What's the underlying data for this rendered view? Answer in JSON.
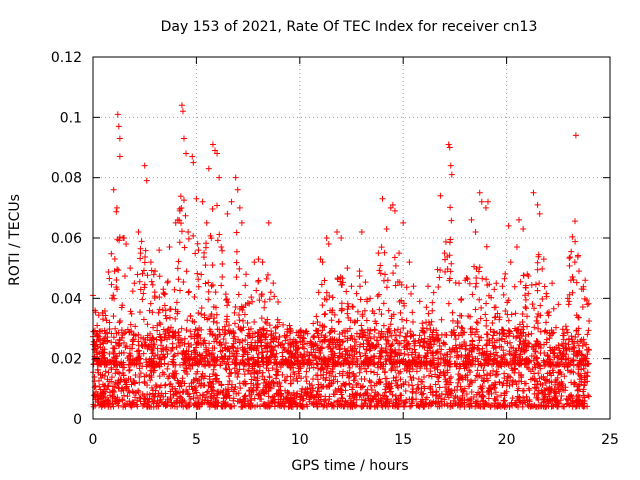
{
  "chart_data": {
    "type": "scatter",
    "title": "Day 153 of 2021, Rate Of TEC Index for receiver cn13",
    "xlabel": "GPS time / hours",
    "ylabel": "ROTI / TECUs",
    "xlim": [
      0,
      25
    ],
    "ylim": [
      0,
      0.12
    ],
    "x_ticks": [
      0,
      5,
      10,
      15,
      20,
      25
    ],
    "x_tick_labels": [
      "0",
      "5",
      "10",
      "15",
      "20",
      "25"
    ],
    "y_ticks": [
      0,
      0.02,
      0.04,
      0.06,
      0.08,
      0.1,
      0.12
    ],
    "y_tick_labels": [
      "0",
      "0.02",
      "0.04",
      "0.06",
      "0.08",
      "0.1",
      "0.12"
    ],
    "grid": true,
    "marker": "+",
    "marker_color": "#ff0000",
    "series": [
      {
        "name": "ROTI",
        "points": [
          [
            0.0,
            0.041
          ],
          [
            0.1,
            0.036
          ],
          [
            0.2,
            0.031
          ],
          [
            0.3,
            0.029
          ],
          [
            0.5,
            0.025
          ],
          [
            0.8,
            0.032
          ],
          [
            1.0,
            0.076
          ],
          [
            1.2,
            0.101
          ],
          [
            1.25,
            0.097
          ],
          [
            1.3,
            0.093
          ],
          [
            1.3,
            0.087
          ],
          [
            1.5,
            0.06
          ],
          [
            1.6,
            0.058
          ],
          [
            1.8,
            0.05
          ],
          [
            2.0,
            0.045
          ],
          [
            2.2,
            0.062
          ],
          [
            2.3,
            0.055
          ],
          [
            2.5,
            0.084
          ],
          [
            2.6,
            0.079
          ],
          [
            2.8,
            0.052
          ],
          [
            3.0,
            0.049
          ],
          [
            3.2,
            0.056
          ],
          [
            3.4,
            0.043
          ],
          [
            3.7,
            0.057
          ],
          [
            4.0,
            0.065
          ],
          [
            4.1,
            0.066
          ],
          [
            4.2,
            0.069
          ],
          [
            4.3,
            0.104
          ],
          [
            4.35,
            0.102
          ],
          [
            4.4,
            0.093
          ],
          [
            4.5,
            0.088
          ],
          [
            4.6,
            0.062
          ],
          [
            4.8,
            0.087
          ],
          [
            4.85,
            0.085
          ],
          [
            5.0,
            0.073
          ],
          [
            5.1,
            0.056
          ],
          [
            5.3,
            0.072
          ],
          [
            5.5,
            0.065
          ],
          [
            5.6,
            0.083
          ],
          [
            5.8,
            0.091
          ],
          [
            5.9,
            0.089
          ],
          [
            6.0,
            0.088
          ],
          [
            6.1,
            0.08
          ],
          [
            6.2,
            0.057
          ],
          [
            6.5,
            0.068
          ],
          [
            6.7,
            0.072
          ],
          [
            6.9,
            0.08
          ],
          [
            7.0,
            0.076
          ],
          [
            7.1,
            0.07
          ],
          [
            7.2,
            0.065
          ],
          [
            7.4,
            0.048
          ],
          [
            7.8,
            0.052
          ],
          [
            8.0,
            0.053
          ],
          [
            8.2,
            0.052
          ],
          [
            8.5,
            0.065
          ],
          [
            8.6,
            0.042
          ],
          [
            9.0,
            0.032
          ],
          [
            9.3,
            0.026
          ],
          [
            9.5,
            0.031
          ],
          [
            9.8,
            0.025
          ],
          [
            10.0,
            0.027
          ],
          [
            10.3,
            0.029
          ],
          [
            10.8,
            0.034
          ],
          [
            11.0,
            0.053
          ],
          [
            11.1,
            0.052
          ],
          [
            11.3,
            0.06
          ],
          [
            11.4,
            0.058
          ],
          [
            11.8,
            0.062
          ],
          [
            12.0,
            0.06
          ],
          [
            12.3,
            0.05
          ],
          [
            12.5,
            0.044
          ],
          [
            13.0,
            0.062
          ],
          [
            13.4,
            0.04
          ],
          [
            13.8,
            0.055
          ],
          [
            14.0,
            0.073
          ],
          [
            14.2,
            0.063
          ],
          [
            14.4,
            0.07
          ],
          [
            14.5,
            0.071
          ],
          [
            14.6,
            0.069
          ],
          [
            14.8,
            0.055
          ],
          [
            15.0,
            0.065
          ],
          [
            15.3,
            0.052
          ],
          [
            15.5,
            0.044
          ],
          [
            15.8,
            0.039
          ],
          [
            16.2,
            0.044
          ],
          [
            16.8,
            0.074
          ],
          [
            17.0,
            0.055
          ],
          [
            17.2,
            0.091
          ],
          [
            17.25,
            0.09
          ],
          [
            17.3,
            0.084
          ],
          [
            17.35,
            0.081
          ],
          [
            17.7,
            0.045
          ],
          [
            18.0,
            0.046
          ],
          [
            18.3,
            0.066
          ],
          [
            18.5,
            0.062
          ],
          [
            18.7,
            0.075
          ],
          [
            18.8,
            0.072
          ],
          [
            19.0,
            0.07
          ],
          [
            19.1,
            0.072
          ],
          [
            19.5,
            0.045
          ],
          [
            19.8,
            0.044
          ],
          [
            20.1,
            0.064
          ],
          [
            20.2,
            0.052
          ],
          [
            20.5,
            0.057
          ],
          [
            20.6,
            0.066
          ],
          [
            20.8,
            0.063
          ],
          [
            21.0,
            0.048
          ],
          [
            21.3,
            0.075
          ],
          [
            21.5,
            0.071
          ],
          [
            21.6,
            0.068
          ],
          [
            21.8,
            0.053
          ],
          [
            22.2,
            0.045
          ],
          [
            22.5,
            0.038
          ],
          [
            23.0,
            0.038
          ],
          [
            23.3,
            0.052
          ],
          [
            23.35,
            0.094
          ],
          [
            23.5,
            0.049
          ],
          [
            23.8,
            0.046
          ],
          [
            23.9,
            0.038
          ]
        ],
        "baseline_band": {
          "x_range": [
            0,
            24
          ],
          "typical_range": [
            0.004,
            0.03
          ],
          "description": "dense continuous band of points"
        }
      }
    ]
  }
}
